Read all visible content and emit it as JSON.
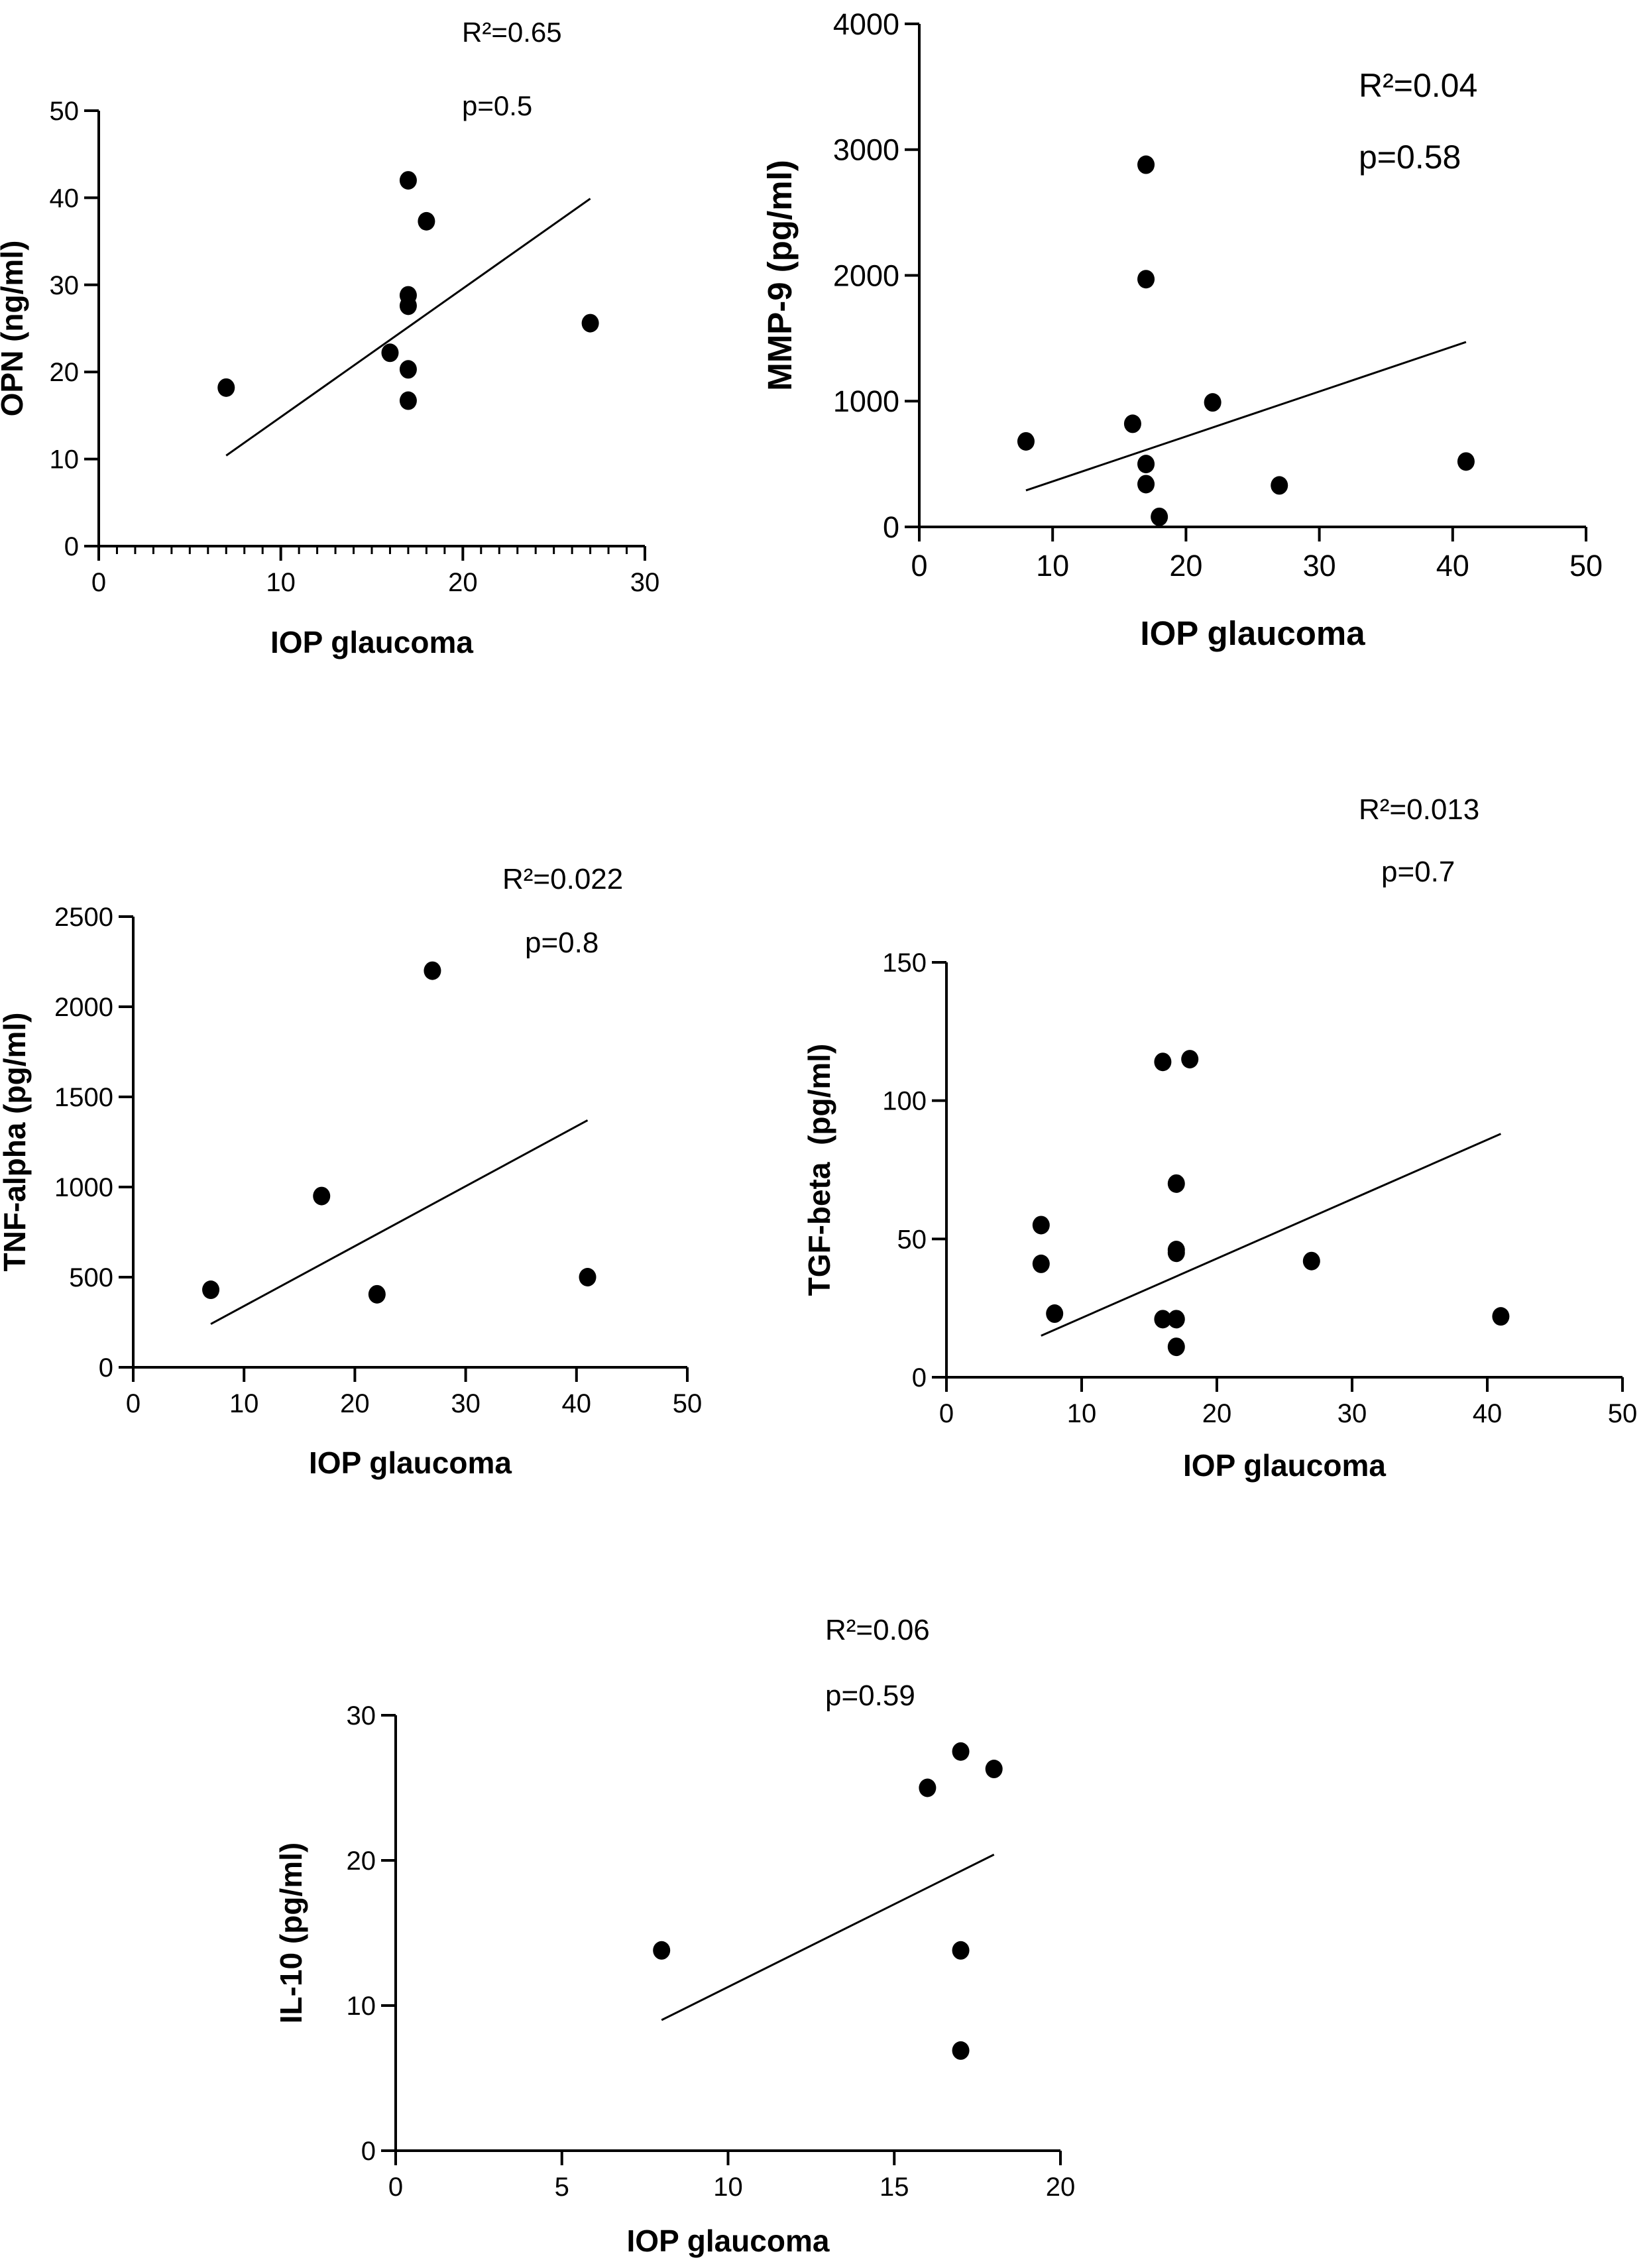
{
  "chart_data": [
    {
      "id": "opn",
      "type": "scatter",
      "xlabel": "IOP glaucoma",
      "ylabel": "OPN (ng/ml)",
      "xlim": [
        0,
        30
      ],
      "ylim": [
        0,
        50
      ],
      "xticks": [
        0,
        10,
        20,
        30
      ],
      "yticks": [
        0,
        10,
        20,
        30,
        40,
        50
      ],
      "minor_x_ticks": 1,
      "annotations": [
        "R²=0.65",
        "p=0.5"
      ],
      "points": [
        [
          7,
          18.2
        ],
        [
          16,
          22.2
        ],
        [
          17,
          42
        ],
        [
          17,
          28.8
        ],
        [
          17,
          27.6
        ],
        [
          17,
          20.3
        ],
        [
          17,
          16.7
        ],
        [
          18,
          37.3
        ],
        [
          27,
          25.6
        ]
      ],
      "fit": [
        [
          7,
          10.4
        ],
        [
          27,
          39.9
        ]
      ]
    },
    {
      "id": "mmp9",
      "type": "scatter",
      "xlabel": "IOP glaucoma",
      "ylabel": "MMP-9 (pg/ml)",
      "xlim": [
        0,
        50
      ],
      "ylim": [
        0,
        4000
      ],
      "xticks": [
        0,
        10,
        20,
        30,
        40,
        50
      ],
      "yticks": [
        0,
        1000,
        2000,
        3000,
        4000
      ],
      "annotations": [
        "R²=0.04",
        "p=0.58"
      ],
      "points": [
        [
          8,
          680
        ],
        [
          16,
          820
        ],
        [
          17,
          2880
        ],
        [
          17,
          1970
        ],
        [
          17,
          500
        ],
        [
          17,
          340
        ],
        [
          18,
          80
        ],
        [
          22,
          990
        ],
        [
          27,
          330
        ],
        [
          41,
          520
        ]
      ],
      "fit": [
        [
          8,
          290
        ],
        [
          41,
          1470
        ]
      ]
    },
    {
      "id": "tnf",
      "type": "scatter",
      "xlabel": "IOP glaucoma",
      "ylabel": "TNF-alpha (pg/ml)",
      "xlim": [
        0,
        50
      ],
      "ylim": [
        0,
        2500
      ],
      "xticks": [
        0,
        10,
        20,
        30,
        40,
        50
      ],
      "yticks": [
        0,
        500,
        1000,
        1500,
        2000,
        2500
      ],
      "annotations": [
        "R²=0.022",
        "p=0.8"
      ],
      "points": [
        [
          7,
          430
        ],
        [
          17,
          950
        ],
        [
          22,
          405
        ],
        [
          27,
          2200
        ],
        [
          41,
          500
        ]
      ],
      "fit": [
        [
          7,
          240
        ],
        [
          41,
          1370
        ]
      ]
    },
    {
      "id": "tgf",
      "type": "scatter",
      "xlabel": "IOP glaucoma",
      "ylabel": "TGF-beta  (pg/ml)",
      "xlim": [
        0,
        50
      ],
      "ylim": [
        0,
        150
      ],
      "xticks": [
        0,
        10,
        20,
        30,
        40,
        50
      ],
      "yticks": [
        0,
        50,
        100,
        150
      ],
      "annotations": [
        "R²=0.013",
        "p=0.7"
      ],
      "points": [
        [
          7,
          55
        ],
        [
          7,
          41
        ],
        [
          8,
          23
        ],
        [
          16,
          114
        ],
        [
          16,
          21
        ],
        [
          17,
          70
        ],
        [
          17,
          46
        ],
        [
          17,
          45
        ],
        [
          17,
          21
        ],
        [
          17,
          11
        ],
        [
          18,
          115
        ],
        [
          27,
          42
        ],
        [
          41,
          22
        ]
      ],
      "fit": [
        [
          7,
          15
        ],
        [
          41,
          88
        ]
      ]
    },
    {
      "id": "il10",
      "type": "scatter",
      "xlabel": "IOP glaucoma",
      "ylabel": "IL-10 (pg/ml)",
      "xlim": [
        0,
        20
      ],
      "ylim": [
        0,
        30
      ],
      "xticks": [
        0,
        5,
        10,
        15,
        20
      ],
      "yticks": [
        0,
        10,
        20,
        30
      ],
      "annotations": [
        "R²=0.06",
        "p=0.59"
      ],
      "points": [
        [
          8,
          13.8
        ],
        [
          16,
          25
        ],
        [
          17,
          27.5
        ],
        [
          17,
          13.8
        ],
        [
          17,
          6.9
        ],
        [
          18,
          26.3
        ]
      ],
      "fit": [
        [
          8,
          9
        ],
        [
          18,
          20.4
        ]
      ]
    }
  ]
}
